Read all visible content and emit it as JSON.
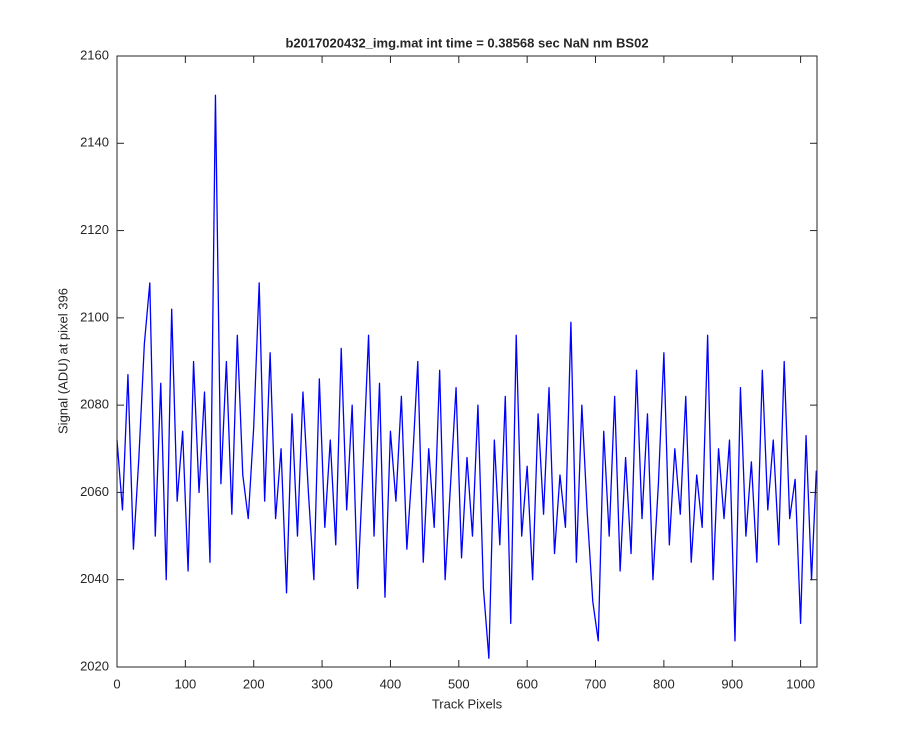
{
  "chart_data": {
    "type": "line",
    "title": "b2017020432_img.mat int time = 0.38568 sec  NaN nm BS02",
    "x_label": "Track Pixels",
    "y_label": "Signal (ADU) at pixel 396",
    "xlim": [
      0,
      1024
    ],
    "ylim": [
      2020,
      2160
    ],
    "xticks": [
      0,
      100,
      200,
      300,
      400,
      500,
      600,
      700,
      800,
      900,
      1000
    ],
    "yticks": [
      2020,
      2040,
      2060,
      2080,
      2100,
      2120,
      2140,
      2160
    ],
    "grid": false,
    "x": [
      0,
      8,
      16,
      24,
      32,
      40,
      48,
      56,
      64,
      72,
      80,
      88,
      96,
      104,
      112,
      120,
      128,
      136,
      144,
      152,
      160,
      168,
      176,
      184,
      192,
      200,
      208,
      216,
      224,
      232,
      240,
      248,
      256,
      264,
      272,
      280,
      288,
      296,
      304,
      312,
      320,
      328,
      336,
      344,
      352,
      360,
      368,
      376,
      384,
      392,
      400,
      408,
      416,
      424,
      432,
      440,
      448,
      456,
      464,
      472,
      480,
      488,
      496,
      504,
      512,
      520,
      528,
      536,
      544,
      552,
      560,
      568,
      576,
      584,
      592,
      600,
      608,
      616,
      624,
      632,
      640,
      648,
      656,
      664,
      672,
      680,
      688,
      696,
      704,
      712,
      720,
      728,
      736,
      744,
      752,
      760,
      768,
      776,
      784,
      792,
      800,
      808,
      816,
      824,
      832,
      840,
      848,
      856,
      864,
      872,
      880,
      888,
      896,
      904,
      912,
      920,
      928,
      936,
      944,
      952,
      960,
      968,
      976,
      984,
      992,
      1000,
      1008,
      1016,
      1023
    ],
    "series": [
      {
        "name": "Signal",
        "color": "#0000ff",
        "values": [
          2072,
          2056,
          2087,
          2047,
          2068,
          2094,
          2108,
          2050,
          2085,
          2040,
          2102,
          2058,
          2074,
          2042,
          2090,
          2060,
          2083,
          2044,
          2151,
          2062,
          2090,
          2055,
          2096,
          2064,
          2054,
          2075,
          2108,
          2058,
          2092,
          2054,
          2070,
          2037,
          2078,
          2050,
          2083,
          2060,
          2040,
          2086,
          2052,
          2072,
          2048,
          2093,
          2056,
          2080,
          2038,
          2066,
          2096,
          2050,
          2085,
          2036,
          2074,
          2058,
          2082,
          2047,
          2066,
          2090,
          2044,
          2070,
          2052,
          2088,
          2040,
          2062,
          2084,
          2045,
          2068,
          2050,
          2080,
          2038,
          2022,
          2072,
          2048,
          2082,
          2030,
          2096,
          2050,
          2066,
          2040,
          2078,
          2055,
          2084,
          2046,
          2064,
          2052,
          2099,
          2044,
          2080,
          2055,
          2035,
          2026,
          2074,
          2050,
          2082,
          2042,
          2068,
          2046,
          2088,
          2054,
          2078,
          2040,
          2062,
          2092,
          2048,
          2070,
          2055,
          2082,
          2044,
          2064,
          2052,
          2096,
          2040,
          2070,
          2054,
          2072,
          2026,
          2084,
          2050,
          2067,
          2044,
          2088,
          2056,
          2072,
          2048,
          2090,
          2054,
          2063,
          2030,
          2073,
          2040,
          2065
        ]
      }
    ]
  }
}
